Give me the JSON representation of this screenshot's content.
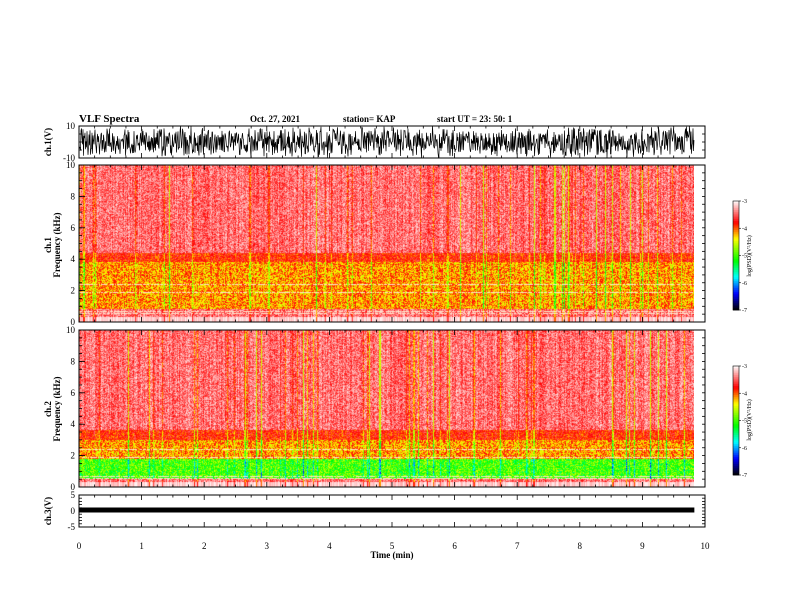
{
  "header": {
    "title": "VLF Spectra",
    "date": "Oct. 27, 2021",
    "station": "station= KAP",
    "start_ut": "start  UT =   23: 50: 1"
  },
  "chart_data": [
    {
      "type": "line",
      "panel": "ch1-waveform",
      "ylabel": "ch.1(V)",
      "yticks": [
        "10",
        "-10"
      ],
      "ylim": [
        -10,
        10
      ],
      "xlim": [
        0,
        10
      ],
      "data_extent_min": 9.83,
      "description_color": "#000000"
    },
    {
      "type": "heatmap",
      "panel": "ch1-spectrogram",
      "ylabel": "Frequency (kHz)",
      "ylabel2": "ch.1",
      "ylim": [
        0,
        10
      ],
      "yticks": [
        "0",
        "2",
        "4",
        "6",
        "8",
        "10"
      ],
      "xlim": [
        0,
        10
      ],
      "data_extent_min": 9.83,
      "band_khz": [
        0.8,
        3.8
      ],
      "colorbar": {
        "label": "log(PSD)(V²/Hz)",
        "ticks": [
          "-3",
          "-4",
          "-5",
          "-6",
          "-7"
        ],
        "range": [
          -7,
          -3
        ],
        "colors": [
          "#ffffff",
          "#ff0000",
          "#ffff00",
          "#00ff00",
          "#00ffff",
          "#0000ff",
          "#000000"
        ]
      }
    },
    {
      "type": "heatmap",
      "panel": "ch2-spectrogram",
      "ylabel": "Frequency (kHz)",
      "ylabel2": "ch.2",
      "ylim": [
        0,
        10
      ],
      "yticks": [
        "0",
        "2",
        "4",
        "6",
        "8",
        "10"
      ],
      "xlim": [
        0,
        10
      ],
      "data_extent_min": 9.83,
      "band_khz": [
        0.5,
        3.0
      ],
      "green_band_khz": [
        0.5,
        1.8
      ],
      "colorbar": {
        "label": "log(PSD)(V²/Hz)",
        "ticks": [
          "-3",
          "-4",
          "-5",
          "-6",
          "-7"
        ],
        "range": [
          -7,
          -3
        ],
        "colors": [
          "#ffffff",
          "#ff0000",
          "#ffff00",
          "#00ff00",
          "#00ffff",
          "#0000ff",
          "#000000"
        ]
      }
    },
    {
      "type": "line",
      "panel": "ch3-waveform",
      "ylabel": "ch.3(V)",
      "yticks": [
        "5",
        "0",
        "-5"
      ],
      "ylim": [
        -5,
        5
      ],
      "xlim": [
        0,
        10
      ],
      "data_extent_min": 9.83,
      "level": 0
    }
  ],
  "xaxis": {
    "label": "Time (min)",
    "ticks": [
      "0",
      "1",
      "2",
      "3",
      "4",
      "5",
      "6",
      "7",
      "8",
      "9",
      "10"
    ]
  }
}
